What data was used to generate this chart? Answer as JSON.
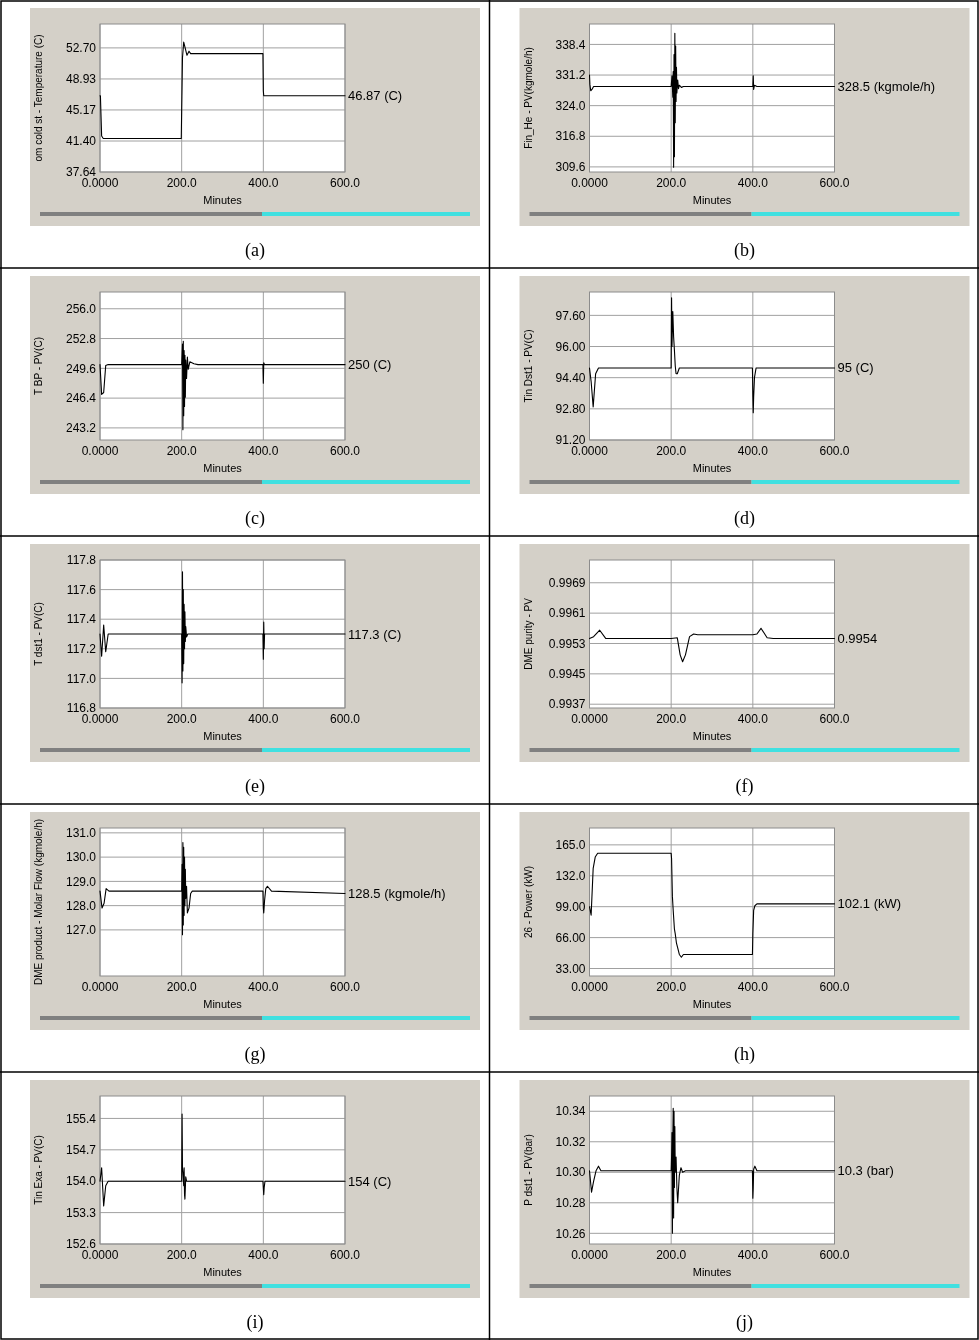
{
  "chart_data": [
    {
      "type": "line",
      "ylabel": "om cold st - Temperature (C)",
      "xlabel": "Minutes",
      "xlim": [
        0,
        600
      ],
      "xticks": [
        {
          "value": 0,
          "label": "0.0000"
        },
        {
          "value": 200,
          "label": "200.0"
        },
        {
          "value": 400,
          "label": "400.0"
        },
        {
          "value": 600,
          "label": "600.0"
        }
      ],
      "ylim": [
        37.64,
        55.6
      ],
      "yticks": [
        {
          "value": 37.64,
          "label": "37.64"
        },
        {
          "value": 41.4,
          "label": "41.40"
        },
        {
          "value": 45.17,
          "label": "45.17"
        },
        {
          "value": 48.93,
          "label": "48.93"
        },
        {
          "value": 52.7,
          "label": "52.70"
        }
      ],
      "grid": true,
      "annotations": [
        "(a)",
        "46.87 (C)"
      ],
      "series": [
        {
          "color": "#000000",
          "x": [
            0,
            1,
            4,
            8,
            199,
            200,
            202,
            205,
            209,
            213,
            218,
            222,
            399,
            400,
            401,
            600
          ],
          "values": [
            46.9,
            46.9,
            42,
            41.7,
            41.7,
            45,
            51.5,
            53.4,
            52.6,
            51.8,
            52.3,
            52.0,
            52.0,
            47.5,
            46.9,
            46.9
          ]
        }
      ]
    },
    {
      "type": "line",
      "ylabel": "Fin_He - PV(kgmole/h)",
      "xlabel": "Minutes",
      "xlim": [
        0,
        600
      ],
      "xticks": [
        {
          "value": 0,
          "label": "0.0000"
        },
        {
          "value": 200,
          "label": "200.0"
        },
        {
          "value": 400,
          "label": "400.0"
        },
        {
          "value": 600,
          "label": "600.0"
        }
      ],
      "ylim": [
        308.4,
        343.2
      ],
      "yticks": [
        309.6,
        316.8,
        {
          "value": 324,
          "label": "324.0"
        },
        331.2,
        338.4
      ],
      "grid": true,
      "annotations": [
        "(b)",
        "328.5 (kgmole/h)"
      ],
      "series": [
        {
          "color": "#000000",
          "x": [
            0,
            1,
            3,
            6,
            10,
            15,
            200,
            202,
            204,
            205,
            206,
            207,
            208,
            209,
            210,
            211,
            212,
            213,
            214,
            216,
            218,
            220,
            225,
            230,
            400,
            401,
            402,
            404,
            410,
            600
          ],
          "values": [
            331.2,
            329,
            327.5,
            327.8,
            328.5,
            328.5,
            328.5,
            331,
            326,
            332,
            309.5,
            336,
            312,
            341,
            320,
            338,
            325,
            333,
            327,
            330,
            328,
            328.8,
            328.3,
            328.5,
            328.5,
            331,
            327.8,
            328.8,
            328.5,
            328.5
          ]
        }
      ]
    },
    {
      "type": "line",
      "ylabel": "T BP - PV(C)",
      "xlabel": "Minutes",
      "xlim": [
        0,
        600
      ],
      "xticks": [
        {
          "value": 0,
          "label": "0.0000"
        },
        {
          "value": 200,
          "label": "200.0"
        },
        {
          "value": 400,
          "label": "400.0"
        },
        {
          "value": 600,
          "label": "600.0"
        }
      ],
      "ylim": [
        241.9,
        257.8
      ],
      "yticks": [
        243.2,
        246.4,
        249.6,
        252.8,
        {
          "value": 256,
          "label": "256.0"
        }
      ],
      "grid": true,
      "annotations": [
        "(c)",
        "250 (C)"
      ],
      "series": [
        {
          "color": "#000000",
          "x": [
            0,
            4,
            9,
            14,
            20,
            200,
            202,
            203,
            204,
            205,
            206,
            207,
            208,
            209,
            210,
            212,
            214,
            216,
            220,
            230,
            240,
            399,
            400,
            401,
            403,
            600
          ],
          "values": [
            250,
            246.8,
            247,
            249.9,
            250,
            250,
            252.2,
            243.0,
            252.5,
            244.5,
            251.5,
            245.5,
            251,
            246.5,
            250.5,
            248.5,
            250.8,
            249.5,
            250.3,
            250.1,
            250,
            250,
            248,
            250.2,
            250,
            250
          ]
        }
      ]
    },
    {
      "type": "line",
      "ylabel": "Tin Dst1 - PV(C)",
      "xlabel": "Minutes",
      "xlim": [
        0,
        600
      ],
      "xticks": [
        {
          "value": 0,
          "label": "0.0000"
        },
        {
          "value": 200,
          "label": "200.0"
        },
        {
          "value": 400,
          "label": "400.0"
        },
        {
          "value": 600,
          "label": "600.0"
        }
      ],
      "ylim": [
        91.2,
        98.8
      ],
      "yticks": [
        {
          "value": 91.2,
          "label": "91.20"
        },
        {
          "value": 92.8,
          "label": "92.80"
        },
        {
          "value": 94.4,
          "label": "94.40"
        },
        {
          "value": 96,
          "label": "96.00"
        },
        {
          "value": 97.6,
          "label": "97.60"
        }
      ],
      "grid": true,
      "annotations": [
        "(d)",
        "95 (C)"
      ],
      "series": [
        {
          "color": "#000000",
          "x": [
            0,
            4,
            9,
            15,
            22,
            200,
            201,
            202,
            204,
            206,
            208,
            210,
            212,
            215,
            220,
            230,
            399,
            400,
            401,
            402,
            404,
            408,
            600
          ],
          "values": [
            94.9,
            94.2,
            92.9,
            94.6,
            94.9,
            94.9,
            98.5,
            96,
            97.8,
            96.5,
            95.8,
            95,
            94.6,
            94.6,
            94.9,
            94.9,
            94.9,
            93.5,
            92.6,
            93.4,
            94.4,
            94.9,
            94.9
          ]
        }
      ]
    },
    {
      "type": "line",
      "ylabel": "T dst1 - PV(C)",
      "xlabel": "Minutes",
      "xlim": [
        0,
        600
      ],
      "xticks": [
        {
          "value": 0,
          "label": "0.0000"
        },
        {
          "value": 200,
          "label": "200.0"
        },
        {
          "value": 400,
          "label": "400.0"
        },
        {
          "value": 600,
          "label": "600.0"
        }
      ],
      "ylim": [
        116.8,
        117.8
      ],
      "yticks": [
        116.8,
        {
          "value": 117,
          "label": "117.0"
        },
        117.2,
        117.4,
        117.6,
        117.8
      ],
      "grid": true,
      "annotations": [
        "(e)",
        "117.3 (C)"
      ],
      "series": [
        {
          "color": "#000000",
          "x": [
            0,
            4,
            9,
            14,
            20,
            200,
            201,
            202,
            203,
            204,
            205,
            206,
            207,
            208,
            209,
            210,
            212,
            215,
            220,
            399,
            400,
            401,
            402,
            403,
            600
          ],
          "values": [
            117.3,
            117.15,
            117.36,
            117.18,
            117.3,
            117.3,
            116.97,
            117.72,
            117.05,
            117.6,
            117.1,
            117.5,
            117.2,
            117.45,
            117.25,
            117.35,
            117.28,
            117.3,
            117.3,
            117.3,
            117.13,
            117.38,
            117.2,
            117.3,
            117.3
          ]
        }
      ]
    },
    {
      "type": "line",
      "ylabel": "DME purity - PV",
      "xlabel": "Minutes",
      "xlim": [
        0,
        600
      ],
      "xticks": [
        {
          "value": 0,
          "label": "0.0000"
        },
        {
          "value": 200,
          "label": "200.0"
        },
        {
          "value": 400,
          "label": "400.0"
        },
        {
          "value": 600,
          "label": "600.0"
        }
      ],
      "ylim": [
        0.9936,
        0.9975
      ],
      "yticks": [
        0.9937,
        0.9945,
        0.9953,
        0.9961,
        0.9969
      ],
      "grid": true,
      "annotations": [
        "(f)",
        "0.9954"
      ],
      "series": [
        {
          "color": "#000000",
          "x": [
            0,
            10,
            25,
            40,
            200,
            215,
            222,
            228,
            235,
            245,
            255,
            265,
            400,
            410,
            420,
            435,
            450,
            600
          ],
          "values": [
            0.99543,
            0.99548,
            0.99565,
            0.99543,
            0.99543,
            0.99545,
            0.995,
            0.99482,
            0.995,
            0.99548,
            0.99555,
            0.99553,
            0.99553,
            0.99555,
            0.9957,
            0.99545,
            0.99543,
            0.99543
          ]
        }
      ]
    },
    {
      "type": "line",
      "ylabel": "DME product - Molar Flow (kgmole/h)",
      "xlabel": "Minutes",
      "xlim": [
        0,
        600
      ],
      "xticks": [
        {
          "value": 0,
          "label": "0.0000"
        },
        {
          "value": 200,
          "label": "200.0"
        },
        {
          "value": 400,
          "label": "400.0"
        },
        {
          "value": 600,
          "label": "600.0"
        }
      ],
      "ylim": [
        125.1,
        131.2
      ],
      "yticks": [
        {
          "value": 127,
          "label": "127.0"
        },
        {
          "value": 128,
          "label": "128.0"
        },
        {
          "value": 129,
          "label": "129.0"
        },
        {
          "value": 130,
          "label": "130.0"
        },
        {
          "value": 131,
          "label": "131.0"
        }
      ],
      "grid": true,
      "annotations": [
        "(g)",
        "128.5 (kgmole/h)"
      ],
      "series": [
        {
          "color": "#000000",
          "x": [
            0,
            5,
            10,
            15,
            22,
            200,
            201,
            202,
            203,
            204,
            205,
            206,
            207,
            208,
            209,
            210,
            212,
            214,
            218,
            222,
            226,
            232,
            240,
            399,
            400,
            401,
            403,
            406,
            410,
            420,
            600
          ],
          "values": [
            128.6,
            127.9,
            128.1,
            128.7,
            128.6,
            128.6,
            129.7,
            126.8,
            130.6,
            127.2,
            130.4,
            127.6,
            130,
            128,
            129.5,
            128.3,
            128.8,
            127.7,
            127.9,
            128.5,
            128.6,
            128.6,
            128.6,
            128.6,
            127.9,
            127.7,
            128.2,
            128.7,
            128.8,
            128.6,
            128.5
          ]
        }
      ]
    },
    {
      "type": "line",
      "ylabel": "26 - Power (kW)",
      "xlabel": "Minutes",
      "xlim": [
        0,
        600
      ],
      "xticks": [
        {
          "value": 0,
          "label": "0.0000"
        },
        {
          "value": 200,
          "label": "200.0"
        },
        {
          "value": 400,
          "label": "400.0"
        },
        {
          "value": 600,
          "label": "600.0"
        }
      ],
      "ylim": [
        25,
        183
      ],
      "yticks": [
        {
          "value": 33,
          "label": "33.00"
        },
        {
          "value": 66,
          "label": "66.00"
        },
        {
          "value": 99,
          "label": "99.00"
        },
        {
          "value": 132,
          "label": "132.0"
        },
        {
          "value": 165,
          "label": "165.0"
        }
      ],
      "grid": true,
      "annotations": [
        "(h)",
        "102.1 (kW)"
      ],
      "series": [
        {
          "color": "#000000",
          "x": [
            0,
            4,
            9,
            14,
            20,
            200,
            201,
            203,
            205,
            208,
            210,
            213,
            216,
            220,
            225,
            230,
            240,
            399,
            400,
            402,
            405,
            410,
            420,
            600
          ],
          "values": [
            99,
            90,
            140,
            152,
            156,
            156,
            150,
            110,
            95,
            75,
            70,
            60,
            55,
            48,
            45,
            48,
            48,
            48,
            70,
            95,
            100,
            102,
            102,
            102
          ]
        }
      ]
    },
    {
      "type": "line",
      "ylabel": "Tin Exa - PV(C)",
      "xlabel": "Minutes",
      "xlim": [
        0,
        600
      ],
      "xticks": [
        {
          "value": 0,
          "label": "0.0000"
        },
        {
          "value": 200,
          "label": "200.0"
        },
        {
          "value": 400,
          "label": "400.0"
        },
        {
          "value": 600,
          "label": "600.0"
        }
      ],
      "ylim": [
        152.6,
        155.9
      ],
      "yticks": [
        152.6,
        153.3,
        {
          "value": 154,
          "label": "154.0"
        },
        154.7,
        155.4
      ],
      "grid": true,
      "annotations": [
        "(i)",
        "154 (C)"
      ],
      "series": [
        {
          "color": "#000000",
          "x": [
            0,
            4,
            9,
            14,
            20,
            200,
            201,
            202,
            203,
            205,
            206,
            207,
            208,
            210,
            212,
            215,
            220,
            399,
            400,
            401,
            402,
            404,
            600
          ],
          "values": [
            154,
            154.3,
            153.45,
            153.9,
            154,
            154,
            155.5,
            154.3,
            154.2,
            153.9,
            154.3,
            153.7,
            153.6,
            154.1,
            154,
            154,
            154,
            154,
            153.85,
            153.7,
            153.85,
            154,
            154
          ]
        }
      ]
    },
    {
      "type": "line",
      "ylabel": "P dst1 - PV(bar)",
      "xlabel": "Minutes",
      "xlim": [
        0,
        600
      ],
      "xticks": [
        {
          "value": 0,
          "label": "0.0000"
        },
        {
          "value": 200,
          "label": "200.0"
        },
        {
          "value": 400,
          "label": "400.0"
        },
        {
          "value": 600,
          "label": "600.0"
        }
      ],
      "ylim": [
        10.253,
        10.35
      ],
      "yticks": [
        10.26,
        10.28,
        {
          "value": 10.3,
          "label": "10.30"
        },
        10.32,
        10.34
      ],
      "grid": true,
      "annotations": [
        "(j)",
        "10.3 (bar)"
      ],
      "series": [
        {
          "color": "#000000",
          "x": [
            0,
            5,
            10,
            16,
            22,
            28,
            200,
            201,
            202,
            203,
            204,
            205,
            206,
            207,
            208,
            209,
            210,
            212,
            214,
            216,
            220,
            224,
            228,
            235,
            250,
            399,
            400,
            401,
            402,
            405,
            410,
            420,
            430,
            600
          ],
          "values": [
            10.301,
            10.287,
            10.294,
            10.301,
            10.304,
            10.301,
            10.301,
            10.31,
            10.326,
            10.26,
            10.322,
            10.342,
            10.27,
            10.34,
            10.29,
            10.33,
            10.3,
            10.31,
            10.29,
            10.28,
            10.298,
            10.303,
            10.3,
            10.301,
            10.301,
            10.301,
            10.283,
            10.29,
            10.302,
            10.304,
            10.301,
            10.301,
            10.301,
            10.301
          ]
        }
      ]
    }
  ]
}
